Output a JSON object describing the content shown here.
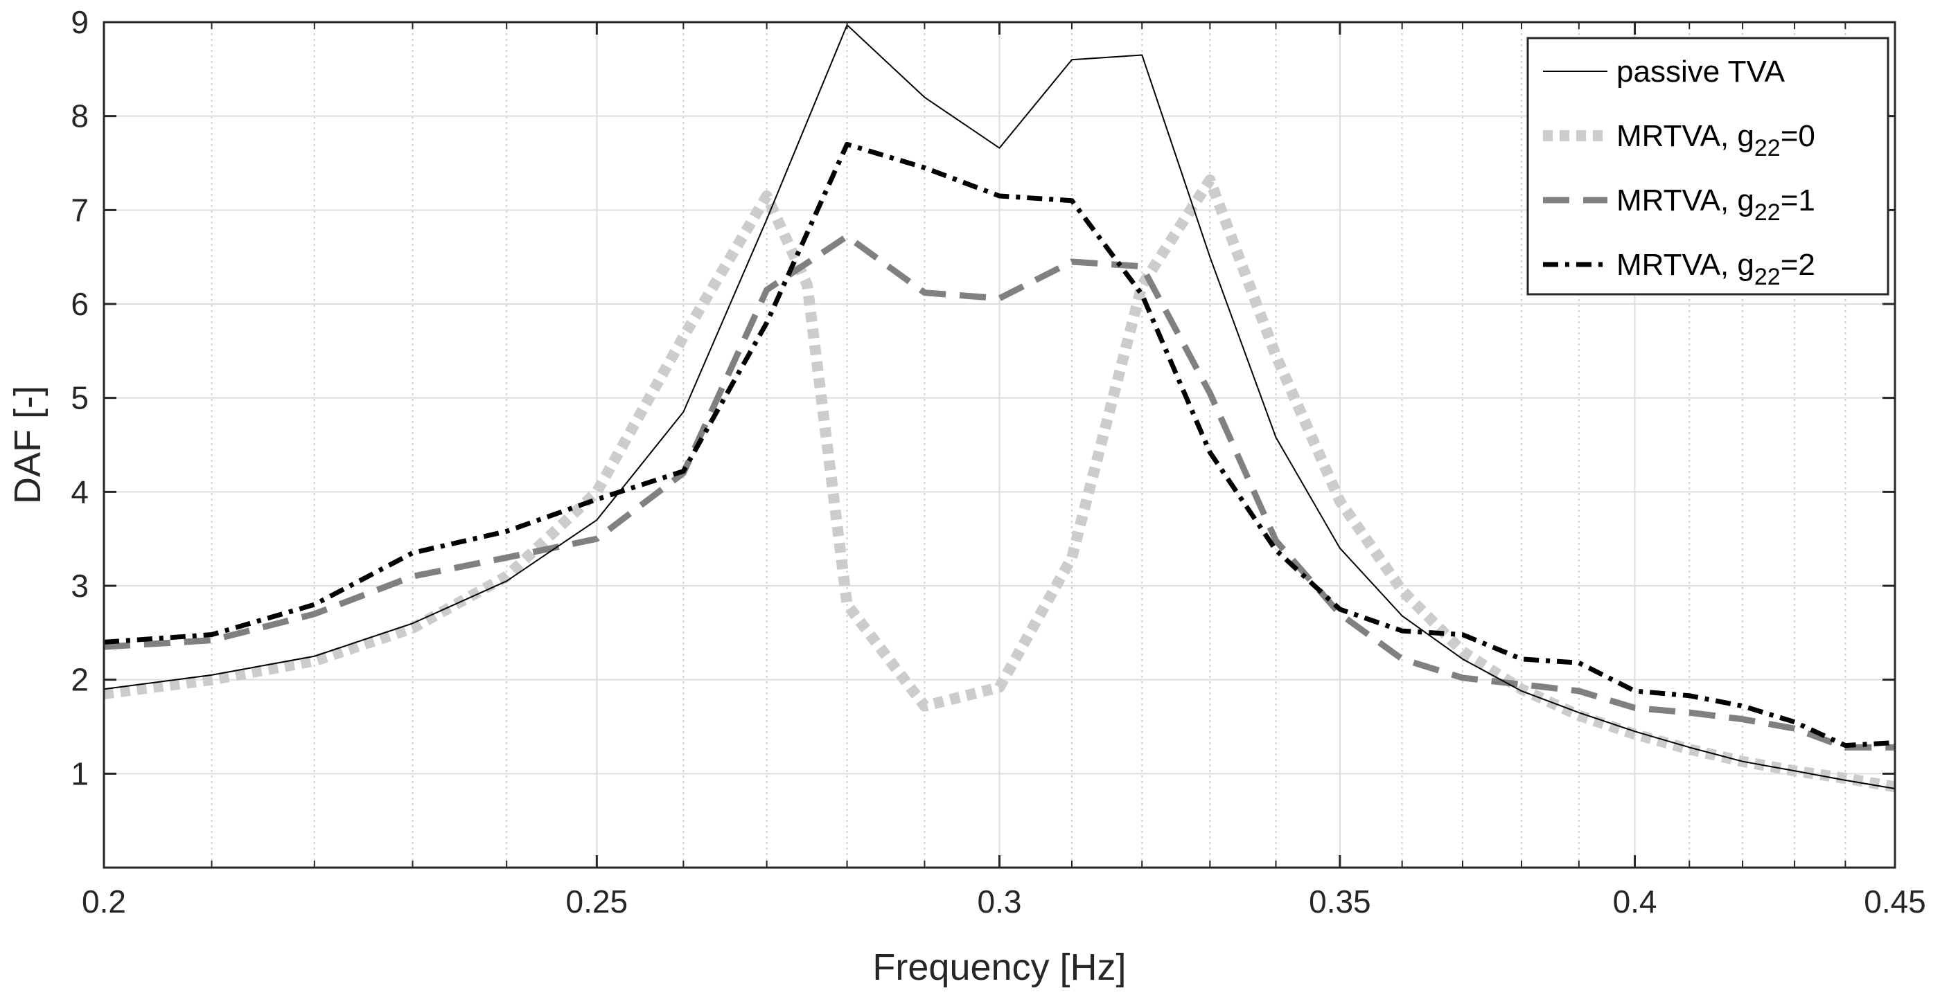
{
  "chart_data": {
    "type": "line",
    "title": "",
    "xlabel": "Frequency [Hz]",
    "ylabel": "DAF [-]",
    "xscale": "log",
    "xlim": [
      0.2,
      0.45
    ],
    "ylim": [
      0,
      9
    ],
    "grid": true,
    "legend_location": "top-right",
    "x_ticks": [
      {
        "value": 0.2,
        "label": "0.2"
      },
      {
        "value": 0.25,
        "label": "0.25"
      },
      {
        "value": 0.3,
        "label": "0.3"
      },
      {
        "value": 0.35,
        "label": "0.35"
      },
      {
        "value": 0.4,
        "label": "0.4"
      },
      {
        "value": 0.45,
        "label": "0.45"
      }
    ],
    "x_minor_ticks": [
      0.21,
      0.22,
      0.23,
      0.24,
      0.26,
      0.27,
      0.28,
      0.29,
      0.31,
      0.32,
      0.33,
      0.34,
      0.36,
      0.37,
      0.38,
      0.39,
      0.41,
      0.42,
      0.43,
      0.44
    ],
    "y_ticks": [
      {
        "value": 1,
        "label": "1"
      },
      {
        "value": 2,
        "label": "2"
      },
      {
        "value": 3,
        "label": "3"
      },
      {
        "value": 4,
        "label": "4"
      },
      {
        "value": 5,
        "label": "5"
      },
      {
        "value": 6,
        "label": "6"
      },
      {
        "value": 7,
        "label": "7"
      },
      {
        "value": 8,
        "label": "8"
      },
      {
        "value": 9,
        "label": "9"
      }
    ],
    "series": [
      {
        "name": "passive TVA",
        "legend_main": "passive TVA",
        "legend_sub": "",
        "legend_tail": "",
        "color": "#000000",
        "style": "solid-thin",
        "x": [
          0.2,
          0.21,
          0.22,
          0.23,
          0.24,
          0.25,
          0.26,
          0.27,
          0.28,
          0.29,
          0.3,
          0.31,
          0.32,
          0.33,
          0.34,
          0.35,
          0.36,
          0.37,
          0.38,
          0.39,
          0.4,
          0.41,
          0.42,
          0.43,
          0.44,
          0.45
        ],
        "y": [
          1.9,
          2.05,
          2.25,
          2.6,
          3.05,
          3.7,
          4.85,
          6.9,
          8.97,
          8.2,
          7.66,
          8.6,
          8.65,
          6.5,
          4.58,
          3.4,
          2.68,
          2.22,
          1.88,
          1.65,
          1.45,
          1.28,
          1.13,
          1.03,
          0.93,
          0.84
        ]
      },
      {
        "name": "MRTVA, g22=0",
        "legend_main": "MRTVA, g",
        "legend_sub": "22",
        "legend_tail": "=0",
        "color": "#cccccc",
        "style": "dotted-thick",
        "x": [
          0.2,
          0.21,
          0.22,
          0.23,
          0.24,
          0.25,
          0.26,
          0.27,
          0.275,
          0.28,
          0.29,
          0.3,
          0.31,
          0.32,
          0.33,
          0.34,
          0.35,
          0.36,
          0.37,
          0.38,
          0.39,
          0.4,
          0.41,
          0.42,
          0.43,
          0.44,
          0.45
        ],
        "y": [
          1.85,
          2.0,
          2.2,
          2.55,
          3.1,
          4.0,
          5.65,
          7.15,
          6.2,
          2.8,
          1.72,
          1.92,
          3.3,
          6.2,
          7.32,
          5.45,
          3.9,
          2.95,
          2.3,
          1.9,
          1.62,
          1.42,
          1.26,
          1.13,
          1.03,
          0.95,
          0.86
        ]
      },
      {
        "name": "MRTVA, g22=1",
        "legend_main": "MRTVA, g",
        "legend_sub": "22",
        "legend_tail": "=1",
        "color": "#808080",
        "style": "dashed",
        "x": [
          0.2,
          0.21,
          0.22,
          0.23,
          0.24,
          0.25,
          0.26,
          0.27,
          0.28,
          0.29,
          0.3,
          0.31,
          0.32,
          0.33,
          0.34,
          0.35,
          0.36,
          0.37,
          0.38,
          0.39,
          0.4,
          0.41,
          0.42,
          0.43,
          0.44,
          0.45
        ],
        "y": [
          2.35,
          2.42,
          2.7,
          3.1,
          3.3,
          3.5,
          4.2,
          6.15,
          6.72,
          6.12,
          6.06,
          6.45,
          6.4,
          5.05,
          3.48,
          2.7,
          2.22,
          2.02,
          1.95,
          1.88,
          1.7,
          1.65,
          1.58,
          1.48,
          1.28,
          1.28
        ]
      },
      {
        "name": "MRTVA, g22=2",
        "legend_main": "MRTVA, g",
        "legend_sub": "22",
        "legend_tail": "=2",
        "color": "#000000",
        "style": "dashdot",
        "x": [
          0.2,
          0.21,
          0.22,
          0.23,
          0.24,
          0.25,
          0.26,
          0.27,
          0.28,
          0.29,
          0.3,
          0.31,
          0.32,
          0.33,
          0.34,
          0.35,
          0.36,
          0.37,
          0.38,
          0.39,
          0.4,
          0.41,
          0.42,
          0.43,
          0.44,
          0.45
        ],
        "y": [
          2.4,
          2.48,
          2.8,
          3.35,
          3.58,
          3.92,
          4.22,
          5.8,
          7.7,
          7.45,
          7.15,
          7.1,
          6.1,
          4.42,
          3.38,
          2.75,
          2.52,
          2.48,
          2.22,
          2.18,
          1.88,
          1.83,
          1.72,
          1.55,
          1.3,
          1.33
        ]
      }
    ]
  }
}
